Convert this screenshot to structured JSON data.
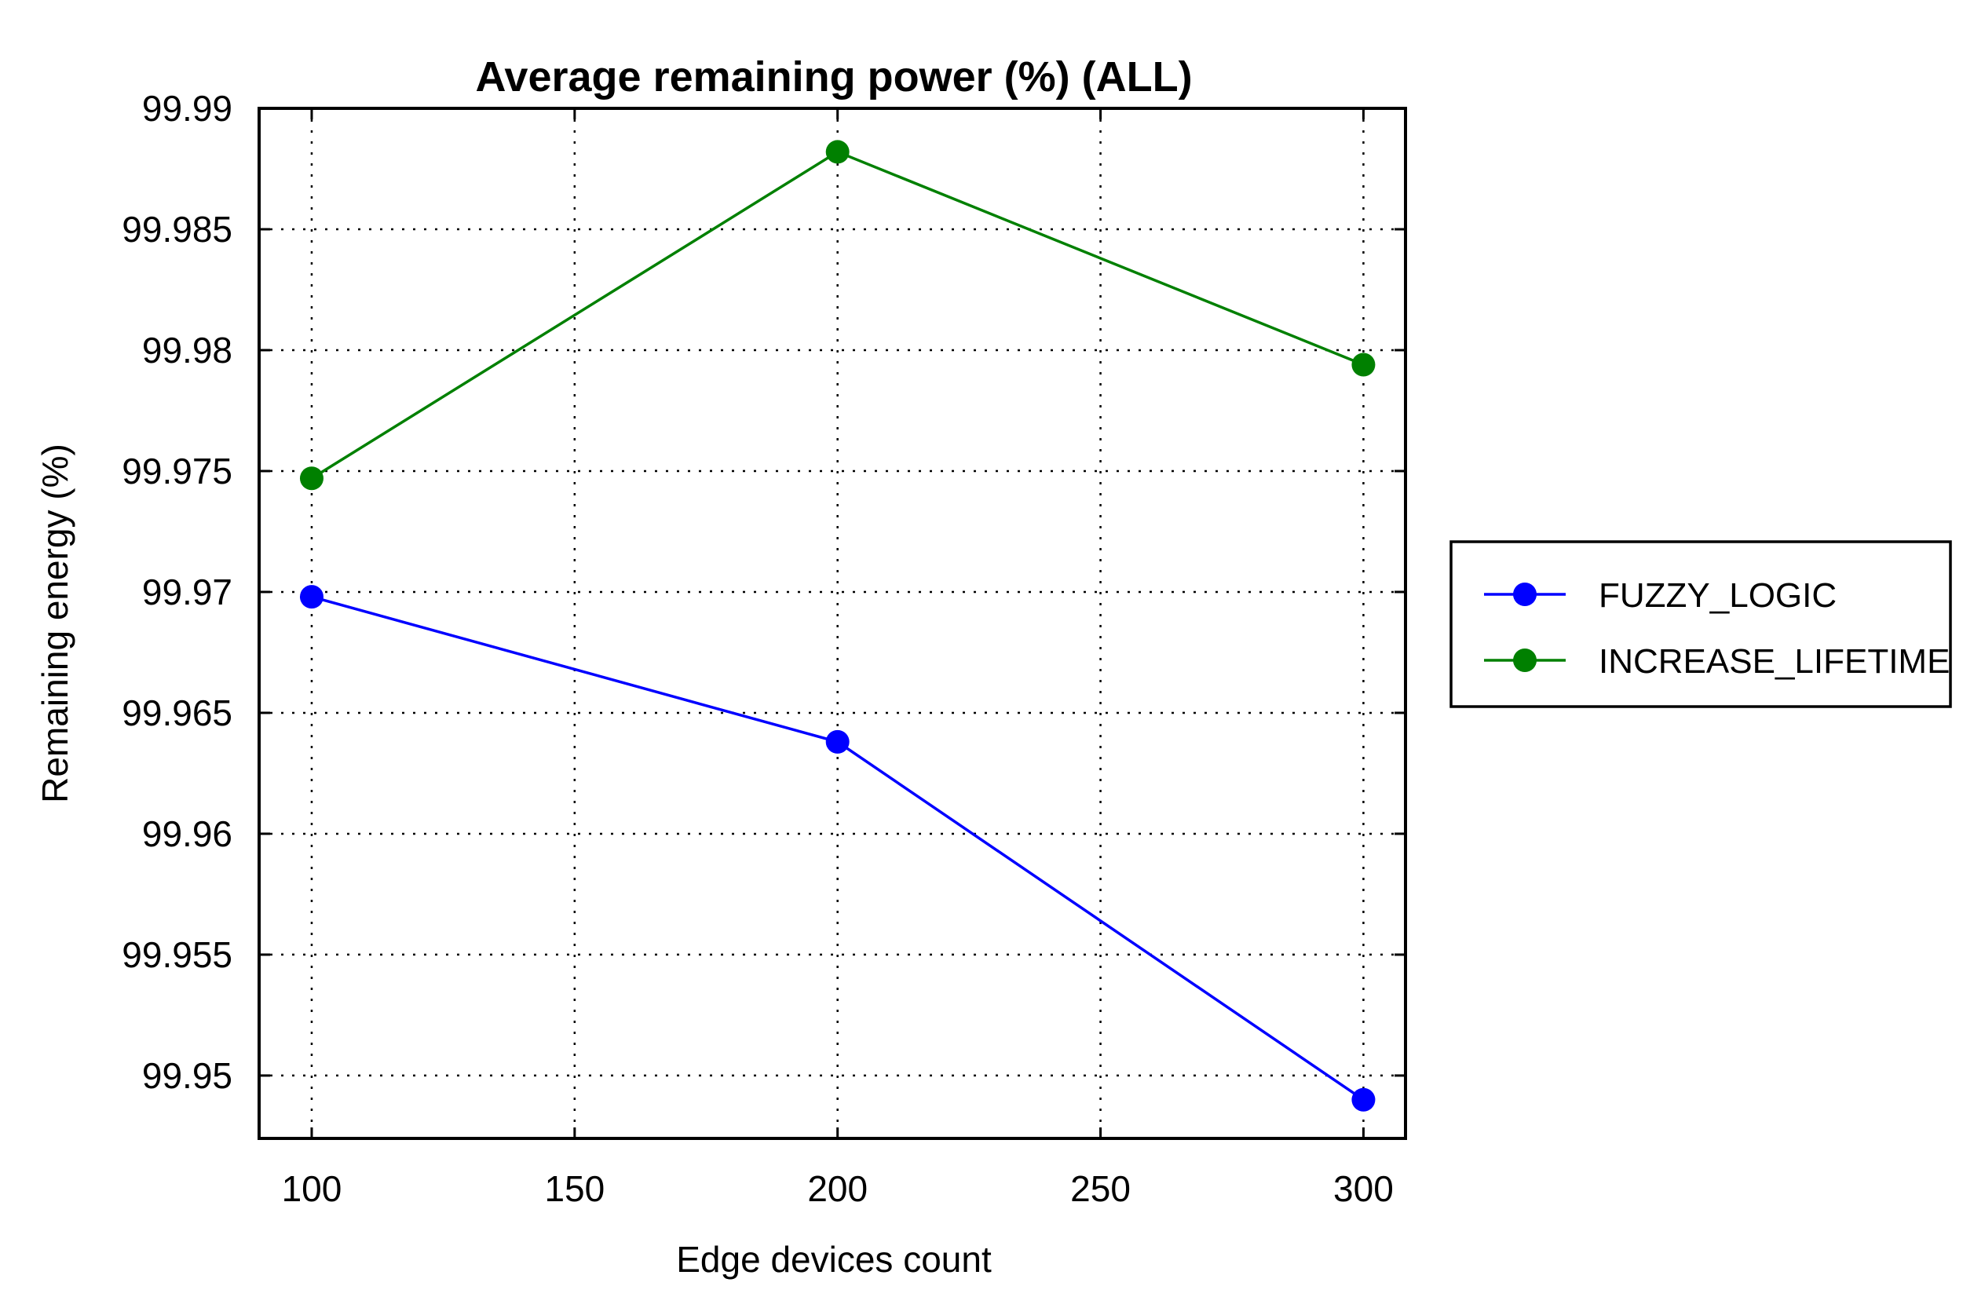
{
  "chart_data": {
    "type": "line",
    "title": "Average remaining power (%) (ALL)",
    "xlabel": "Edge devices count",
    "ylabel": "Remaining energy (%)",
    "x": [
      100,
      200,
      300
    ],
    "xlim": [
      90,
      308
    ],
    "ylim": [
      99.9474,
      99.99
    ],
    "xticks": [
      100,
      150,
      200,
      250,
      300
    ],
    "xtick_labels": [
      "100",
      "150",
      "200",
      "250",
      "300"
    ],
    "yticks": [
      99.95,
      99.955,
      99.96,
      99.965,
      99.97,
      99.975,
      99.98,
      99.985,
      99.99
    ],
    "ytick_labels": [
      "99.95",
      "99.955",
      "99.96",
      "99.965",
      "99.97",
      "99.975",
      "99.98",
      "99.985",
      "99.99"
    ],
    "grid": true,
    "legend_position": "right",
    "series": [
      {
        "name": "FUZZY_LOGIC",
        "values": [
          99.9698,
          99.9638,
          99.949
        ],
        "color": "#0000ff",
        "marker": "circle"
      },
      {
        "name": "INCREASE_LIFETIME",
        "values": [
          99.9747,
          99.9882,
          99.9794
        ],
        "color": "#008000",
        "marker": "circle"
      }
    ]
  }
}
